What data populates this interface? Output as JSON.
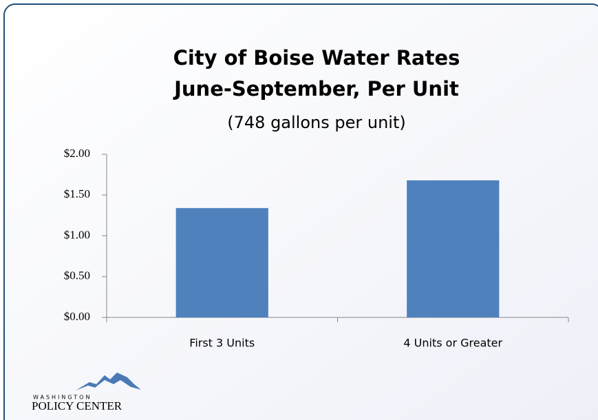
{
  "chart_data": {
    "type": "bar",
    "title": [
      "City of Boise Water Rates",
      "June-September, Per Unit"
    ],
    "subtitle": "(748 gallons per unit)",
    "categories": [
      "First 3 Units",
      "4 Units or Greater"
    ],
    "values": [
      1.34,
      1.68
    ],
    "color": "#4f81bd",
    "ylim": [
      0,
      2
    ],
    "yticks": [
      {
        "value": 0,
        "label": "$0.00"
      },
      {
        "value": 0.5,
        "label": "$0.50"
      },
      {
        "value": 1,
        "label": "$1.00"
      },
      {
        "value": 1.5,
        "label": "$1.50"
      },
      {
        "value": 2,
        "label": "$2.00"
      }
    ],
    "grid": false
  },
  "logo": {
    "top": "WASHINGTON",
    "name": "POLICY CENTER"
  }
}
